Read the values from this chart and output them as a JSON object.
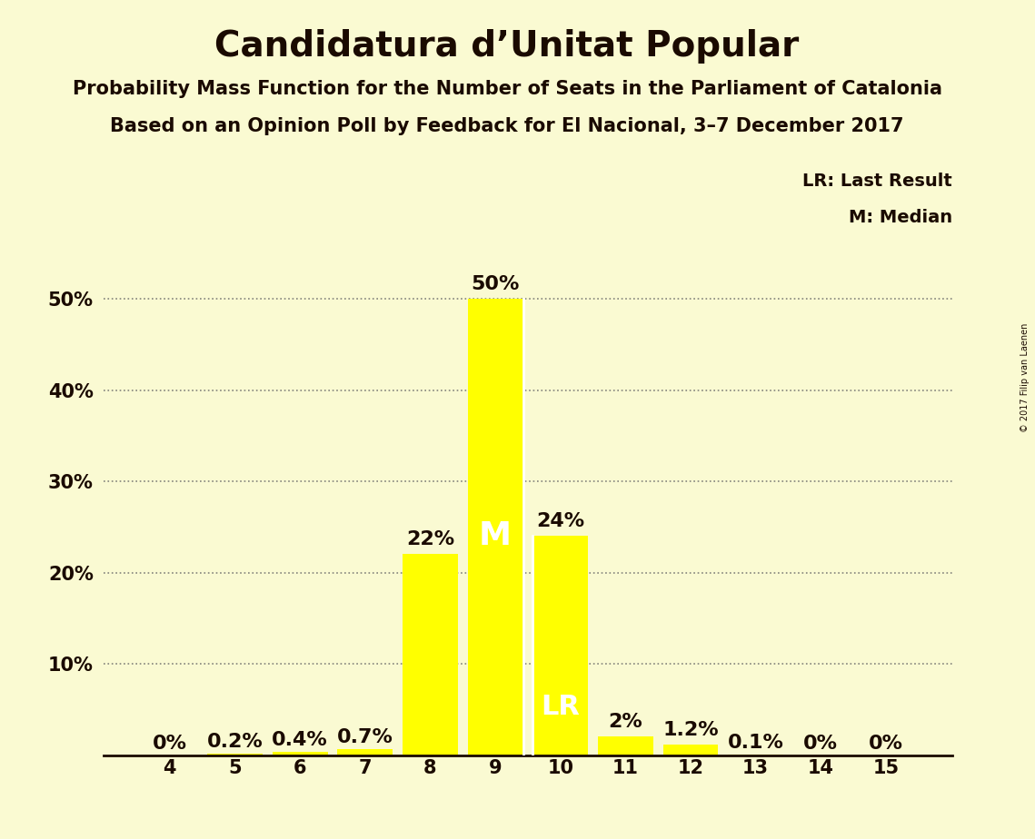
{
  "title": "Candidatura d’Unitat Popular",
  "subtitle1": "Probability Mass Function for the Number of Seats in the Parliament of Catalonia",
  "subtitle2": "Based on an Opinion Poll by Feedback for El Nacional, 3–7 December 2017",
  "copyright": "© 2017 Filip van Laenen",
  "categories": [
    4,
    5,
    6,
    7,
    8,
    9,
    10,
    11,
    12,
    13,
    14,
    15
  ],
  "values": [
    0.0,
    0.2,
    0.4,
    0.7,
    22.0,
    50.0,
    24.0,
    2.0,
    1.2,
    0.1,
    0.0,
    0.0
  ],
  "labels": [
    "0%",
    "0.2%",
    "0.4%",
    "0.7%",
    "22%",
    "50%",
    "24%",
    "2%",
    "1.2%",
    "0.1%",
    "0%",
    "0%"
  ],
  "bar_color": "#FFFF00",
  "background_color": "#FAFAD2",
  "text_color": "#1a0a00",
  "median_seat": 9,
  "last_result_seat": 10,
  "yticks": [
    10,
    20,
    30,
    40,
    50
  ],
  "ytick_labels": [
    "10%",
    "20%",
    "30%",
    "40%",
    "50%"
  ],
  "ylim": [
    0,
    57
  ],
  "grid_color": "#666666",
  "legend_lr": "LR: Last Result",
  "legend_m": "M: Median",
  "title_fontsize": 28,
  "subtitle_fontsize": 15,
  "tick_fontsize": 15,
  "annotation_fontsize": 16,
  "legend_fontsize": 14
}
